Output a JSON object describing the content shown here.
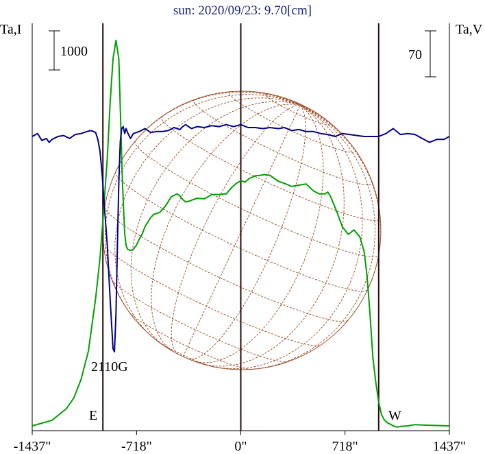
{
  "title": "sun: 2020/09/23: 9.70[cm]",
  "left_axis_label": "Ta,I",
  "right_axis_label": "Ta,V",
  "left_scale_label": "1000",
  "right_scale_label": "70",
  "spot_label": "2110G",
  "east_label": "E",
  "west_label": "W",
  "colors": {
    "stokes_i": "#00a000",
    "stokes_v": "#00008b",
    "disk_grid": "#a0522d",
    "axes": "#000000",
    "limb_lines": "#2b0a0a",
    "title": "#1a237e"
  },
  "chart_data": {
    "type": "line",
    "title": "sun: 2020/09/23: 9.70[cm]",
    "xlabel": "",
    "xlim": [
      -1437,
      1437
    ],
    "x_ticks": [
      -1437,
      -718,
      0,
      718,
      1437
    ],
    "x_tick_labels": [
      "-1437\"",
      "-718\"",
      "0\"",
      "718\"",
      "1437\""
    ],
    "vertical_lines": [
      -950,
      0,
      950
    ],
    "scale_bars": [
      {
        "axis": "Ta,I",
        "value": 1000
      },
      {
        "axis": "Ta,V",
        "value": 70
      }
    ],
    "series": [
      {
        "name": "Ta,I",
        "x": [
          -1437,
          -1300,
          -1200,
          -1150,
          -1100,
          -1050,
          -1000,
          -970,
          -950,
          -920,
          -900,
          -880,
          -860,
          -840,
          -830,
          -815,
          -800,
          -790,
          -780,
          -760,
          -740,
          -720,
          -700,
          -680,
          -660,
          -640,
          -620,
          -600,
          -560,
          -520,
          -480,
          -440,
          -420,
          -400,
          -380,
          -360,
          -300,
          -250,
          -200,
          -150,
          -100,
          -60,
          -30,
          0,
          30,
          60,
          100,
          140,
          160,
          200,
          230,
          260,
          300,
          350,
          400,
          450,
          500,
          540,
          580,
          600,
          620,
          660,
          700,
          740,
          780,
          820,
          850,
          870,
          890,
          910,
          930,
          950,
          970,
          990,
          1010,
          1030,
          1050,
          1080,
          1100,
          1150,
          1200,
          1300,
          1437
        ],
        "values": [
          0,
          90,
          280,
          450,
          750,
          1200,
          2050,
          2700,
          3300,
          4300,
          5200,
          5900,
          6200,
          5900,
          5100,
          3900,
          3100,
          2900,
          2840,
          2820,
          2840,
          2900,
          3000,
          3080,
          3200,
          3280,
          3350,
          3400,
          3430,
          3530,
          3680,
          3730,
          3700,
          3640,
          3600,
          3610,
          3660,
          3650,
          3720,
          3720,
          3730,
          3840,
          3900,
          3940,
          3920,
          3980,
          4020,
          4030,
          4040,
          4030,
          3980,
          3930,
          3900,
          3850,
          3870,
          3890,
          3780,
          3730,
          3730,
          3760,
          3680,
          3450,
          3200,
          3080,
          3150,
          3040,
          2800,
          2400,
          1800,
          1100,
          700,
          380,
          180,
          90,
          50,
          28,
          0,
          -20,
          -8,
          0,
          20,
          10,
          0
        ],
        "unit_scale": 1000
      },
      {
        "name": "Ta,V",
        "x": [
          -1437,
          -1400,
          -1370,
          -1340,
          -1320,
          -1300,
          -1260,
          -1220,
          -1180,
          -1140,
          -1100,
          -1060,
          -1030,
          -1000,
          -985,
          -970,
          -955,
          -940,
          -920,
          -900,
          -880,
          -870,
          -860,
          -850,
          -840,
          -830,
          -820,
          -810,
          -800,
          -790,
          -780,
          -760,
          -740,
          -700,
          -660,
          -620,
          -580,
          -540,
          -500,
          -460,
          -420,
          -400,
          -380,
          -340,
          -300,
          -250,
          -200,
          -150,
          -100,
          -50,
          0,
          50,
          100,
          150,
          200,
          260,
          300,
          350,
          400,
          450,
          500,
          550,
          600,
          650,
          700,
          750,
          800,
          850,
          900,
          950,
          1000,
          1050,
          1100,
          1150,
          1200,
          1250,
          1300,
          1350,
          1400,
          1437
        ],
        "values": [
          0,
          3,
          -4,
          -2,
          -6,
          -3,
          0,
          1,
          -2,
          2,
          3,
          5,
          6,
          4,
          -3,
          -15,
          -38,
          -70,
          -110,
          -165,
          -215,
          -218,
          -180,
          -110,
          -45,
          -5,
          8,
          10,
          3,
          8,
          4,
          -2,
          3,
          5,
          8,
          4,
          5,
          5,
          6,
          9,
          7,
          10,
          12,
          8,
          10,
          9,
          11,
          10,
          12,
          10,
          12,
          9,
          9,
          8,
          9,
          8,
          9,
          6,
          7,
          5,
          5,
          3,
          2,
          0,
          3,
          2,
          1,
          0,
          0,
          0,
          3,
          8,
          2,
          3,
          2,
          -2,
          -6,
          -3,
          -3,
          0
        ]
      }
    ],
    "legend": "none",
    "grid": false
  }
}
